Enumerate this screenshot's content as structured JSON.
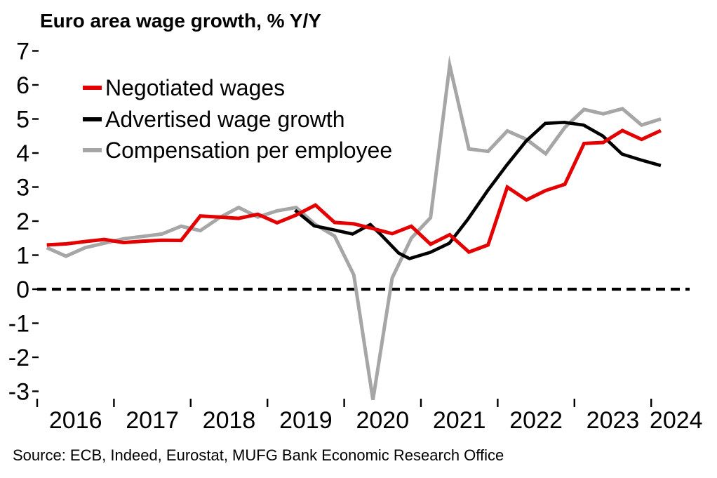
{
  "title": "Euro area wage growth, % Y/Y",
  "source": "Source: ECB, Indeed, Eurostat, MUFG Bank Economic Research Office",
  "colors": {
    "negotiated": "#e40000",
    "advertised": "#000000",
    "compensation": "#a6a6a6",
    "zero_line": "#000000",
    "tick": "#000000",
    "text": "#000000"
  },
  "chart_data": {
    "type": "line",
    "title": "Euro area wage growth, % Y/Y",
    "xlabel": "",
    "ylabel": "% Y/Y",
    "grid": false,
    "legend_position": "upper-left-inside",
    "x_axis": {
      "tick_years": [
        2016,
        2017,
        2018,
        2019,
        2020,
        2021,
        2022,
        2023,
        2024
      ],
      "range": [
        2016.0,
        2024.65
      ]
    },
    "y_axis": {
      "ticks": [
        7,
        6,
        5,
        4,
        3,
        2,
        1,
        0,
        -1,
        -2,
        -3
      ],
      "range": [
        -3.45,
        7.3
      ]
    },
    "zero_line": {
      "value": 0,
      "style": "dashed"
    },
    "series": [
      {
        "name": "Compensation per employee",
        "color_key": "compensation",
        "stroke_width": 5,
        "points": [
          [
            2016.125,
            1.22
          ],
          [
            2016.375,
            0.97
          ],
          [
            2016.625,
            1.22
          ],
          [
            2016.875,
            1.35
          ],
          [
            2017.125,
            1.48
          ],
          [
            2017.375,
            1.55
          ],
          [
            2017.625,
            1.62
          ],
          [
            2017.875,
            1.85
          ],
          [
            2018.125,
            1.72
          ],
          [
            2018.375,
            2.1
          ],
          [
            2018.625,
            2.4
          ],
          [
            2018.875,
            2.12
          ],
          [
            2019.125,
            2.3
          ],
          [
            2019.375,
            2.4
          ],
          [
            2019.625,
            1.9
          ],
          [
            2019.875,
            1.56
          ],
          [
            2020.125,
            0.42
          ],
          [
            2020.375,
            -3.25
          ],
          [
            2020.625,
            0.33
          ],
          [
            2020.875,
            1.5
          ],
          [
            2021.125,
            2.1
          ],
          [
            2021.375,
            6.58
          ],
          [
            2021.625,
            4.12
          ],
          [
            2021.875,
            4.05
          ],
          [
            2022.125,
            4.65
          ],
          [
            2022.375,
            4.4
          ],
          [
            2022.625,
            3.98
          ],
          [
            2022.875,
            4.75
          ],
          [
            2023.125,
            5.28
          ],
          [
            2023.375,
            5.15
          ],
          [
            2023.625,
            5.3
          ],
          [
            2023.875,
            4.82
          ],
          [
            2024.125,
            5.0
          ]
        ]
      },
      {
        "name": "Advertised wage growth",
        "color_key": "advertised",
        "stroke_width": 4.6,
        "points": [
          [
            2019.36,
            2.32
          ],
          [
            2019.61,
            1.86
          ],
          [
            2019.79,
            1.78
          ],
          [
            2020.11,
            1.62
          ],
          [
            2020.34,
            1.9
          ],
          [
            2020.47,
            1.62
          ],
          [
            2020.71,
            1.06
          ],
          [
            2020.85,
            0.9
          ],
          [
            2021.12,
            1.08
          ],
          [
            2021.37,
            1.35
          ],
          [
            2021.61,
            2.05
          ],
          [
            2021.87,
            2.9
          ],
          [
            2022.12,
            3.65
          ],
          [
            2022.37,
            4.35
          ],
          [
            2022.62,
            4.87
          ],
          [
            2022.87,
            4.9
          ],
          [
            2023.12,
            4.82
          ],
          [
            2023.37,
            4.5
          ],
          [
            2023.62,
            3.97
          ],
          [
            2023.86,
            3.8
          ],
          [
            2024.125,
            3.63
          ]
        ]
      },
      {
        "name": "Negotiated wages",
        "color_key": "negotiated",
        "stroke_width": 5,
        "points": [
          [
            2016.125,
            1.3
          ],
          [
            2016.375,
            1.33
          ],
          [
            2016.625,
            1.4
          ],
          [
            2016.875,
            1.46
          ],
          [
            2017.125,
            1.37
          ],
          [
            2017.375,
            1.41
          ],
          [
            2017.625,
            1.44
          ],
          [
            2017.875,
            1.43
          ],
          [
            2018.125,
            2.15
          ],
          [
            2018.375,
            2.12
          ],
          [
            2018.625,
            2.08
          ],
          [
            2018.875,
            2.2
          ],
          [
            2019.125,
            1.95
          ],
          [
            2019.375,
            2.18
          ],
          [
            2019.625,
            2.47
          ],
          [
            2019.875,
            1.96
          ],
          [
            2020.125,
            1.92
          ],
          [
            2020.375,
            1.78
          ],
          [
            2020.625,
            1.63
          ],
          [
            2020.875,
            1.85
          ],
          [
            2021.125,
            1.32
          ],
          [
            2021.375,
            1.6
          ],
          [
            2021.625,
            1.09
          ],
          [
            2021.875,
            1.3
          ],
          [
            2022.125,
            3.0
          ],
          [
            2022.375,
            2.62
          ],
          [
            2022.625,
            2.9
          ],
          [
            2022.875,
            3.08
          ],
          [
            2023.125,
            4.28
          ],
          [
            2023.375,
            4.31
          ],
          [
            2023.625,
            4.66
          ],
          [
            2023.875,
            4.4
          ],
          [
            2024.125,
            4.66
          ]
        ]
      }
    ],
    "legend": [
      {
        "label": "Negotiated wages",
        "color_key": "negotiated"
      },
      {
        "label": "Advertised wage growth",
        "color_key": "advertised"
      },
      {
        "label": "Compensation per employee",
        "color_key": "compensation"
      }
    ]
  }
}
